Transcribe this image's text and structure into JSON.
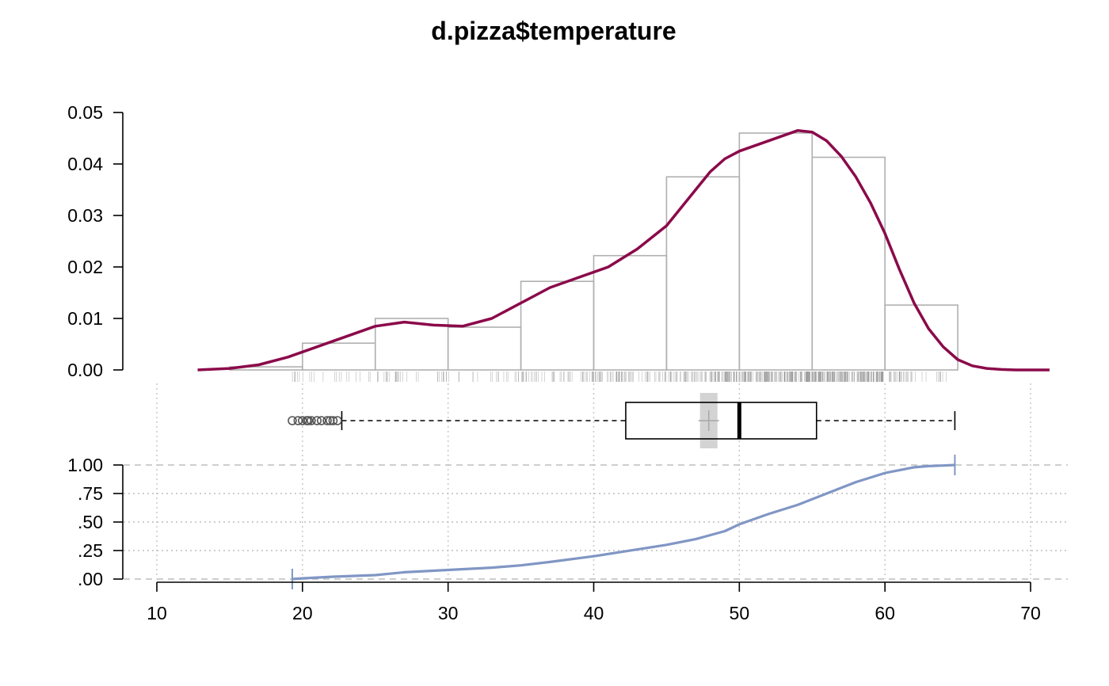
{
  "chart_data": [
    {
      "panel": "density",
      "type": "bar",
      "title": "d.pizza$temperature",
      "xlim": [
        10,
        70
      ],
      "ylim": [
        0,
        0.05
      ],
      "y_ticks": [
        "0.00",
        "0.01",
        "0.02",
        "0.03",
        "0.04",
        "0.05"
      ],
      "y_tick_values": [
        0,
        0.01,
        0.02,
        0.03,
        0.04,
        0.05
      ],
      "histogram": {
        "bin_edges": [
          15,
          20,
          25,
          30,
          35,
          40,
          45,
          50,
          55,
          60,
          65
        ],
        "densities": [
          0.0006,
          0.0052,
          0.01,
          0.0083,
          0.0172,
          0.0222,
          0.0375,
          0.046,
          0.0413,
          0.0126
        ]
      },
      "density_curve": {
        "x": [
          12.8,
          15,
          17,
          19,
          21,
          23,
          25,
          27,
          29,
          31,
          33,
          35,
          37,
          39,
          41,
          43,
          45,
          47,
          48,
          49,
          50,
          52,
          54,
          55,
          56,
          57,
          58,
          59,
          60,
          61,
          62,
          63,
          64,
          65,
          66,
          67,
          68,
          69,
          70,
          71.3
        ],
        "y": [
          0.0,
          0.0003,
          0.001,
          0.0025,
          0.0045,
          0.0065,
          0.0085,
          0.0093,
          0.0087,
          0.0085,
          0.01,
          0.013,
          0.016,
          0.018,
          0.02,
          0.0235,
          0.028,
          0.035,
          0.0385,
          0.041,
          0.0425,
          0.0445,
          0.0465,
          0.0462,
          0.0445,
          0.0415,
          0.0375,
          0.0325,
          0.0265,
          0.0195,
          0.013,
          0.008,
          0.0045,
          0.002,
          0.0008,
          0.0003,
          0.0001,
          0.0,
          0.0,
          0.0
        ]
      },
      "colors": {
        "curve": "#8B0A4A",
        "bars": "#B0B0B0",
        "rug": "#808080"
      }
    },
    {
      "panel": "boxplot",
      "type": "boxplot",
      "min": 22.7,
      "q1": 42.2,
      "median": 50.0,
      "q3": 55.3,
      "max": 64.8,
      "mean": 47.9,
      "mean_ci": [
        47.3,
        48.5
      ],
      "outliers": [
        19.3,
        19.7,
        20.0,
        20.3,
        20.4,
        20.6,
        21.0,
        21.3,
        21.7,
        21.9,
        22.1,
        22.4
      ],
      "colors": {
        "ci": "#D3D3D3",
        "outliers": "#555555"
      }
    },
    {
      "panel": "ecdf",
      "type": "line",
      "ylim": [
        0,
        1
      ],
      "y_ticks": [
        ".00",
        ".25",
        ".50",
        ".75",
        "1.00"
      ],
      "y_tick_values": [
        0,
        0.25,
        0.5,
        0.75,
        1.0
      ],
      "x_ticks": [
        "10",
        "20",
        "30",
        "40",
        "50",
        "60",
        "70"
      ],
      "x_tick_values": [
        10,
        20,
        30,
        40,
        50,
        60,
        70
      ],
      "xlim": [
        10,
        70
      ],
      "x": [
        19.3,
        20,
        22,
        25,
        27,
        30,
        33,
        35,
        37,
        40,
        42,
        45,
        47,
        49,
        50,
        52,
        54,
        56,
        58,
        60,
        62,
        63,
        64,
        64.8
      ],
      "y": [
        0.0,
        0.006,
        0.02,
        0.035,
        0.06,
        0.08,
        0.1,
        0.12,
        0.15,
        0.2,
        0.24,
        0.3,
        0.35,
        0.42,
        0.48,
        0.57,
        0.65,
        0.75,
        0.85,
        0.93,
        0.98,
        0.99,
        0.995,
        1.0
      ],
      "colors": {
        "line": "#8096C4"
      }
    }
  ]
}
